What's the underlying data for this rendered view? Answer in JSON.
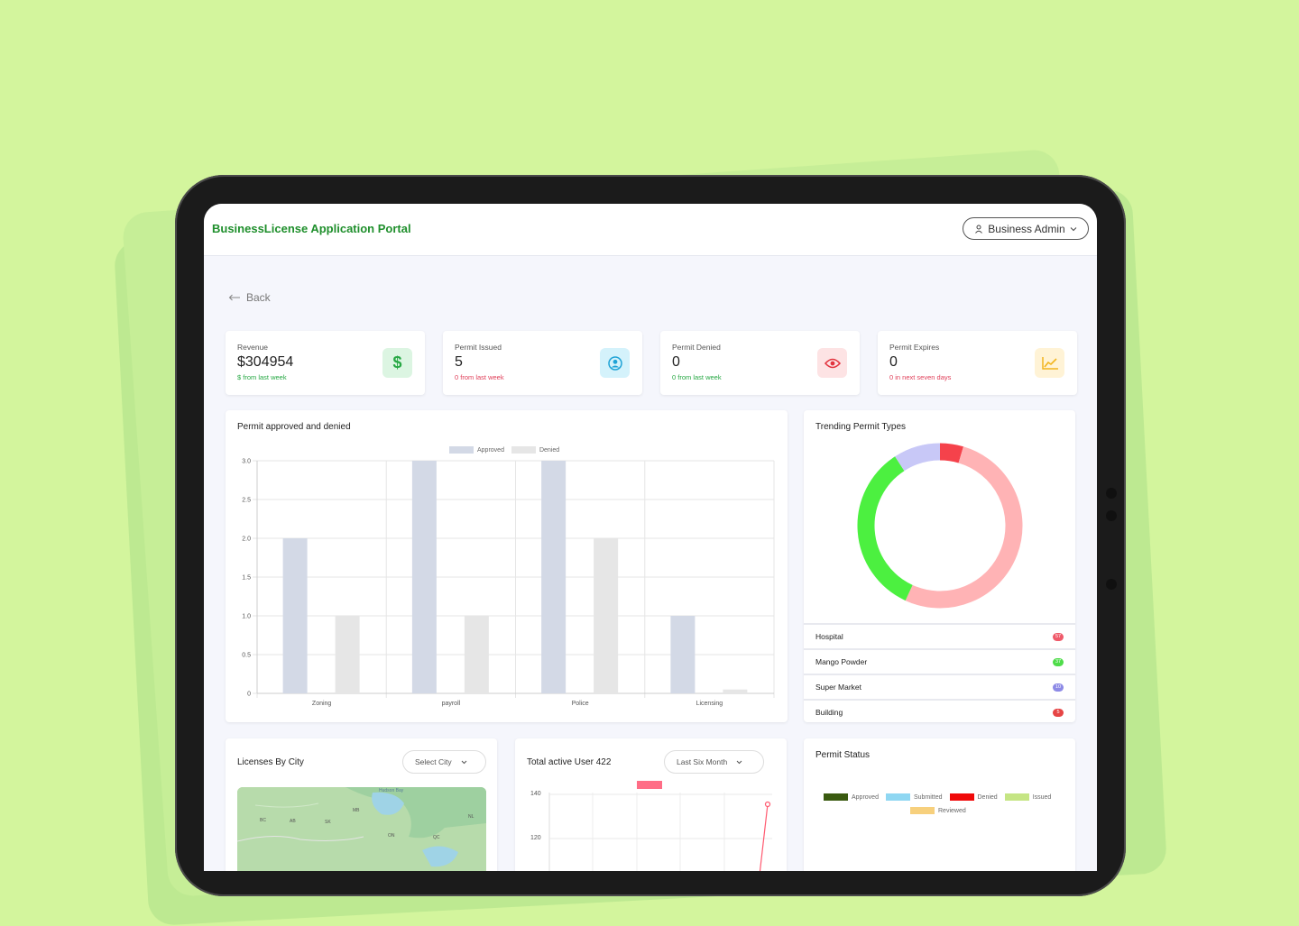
{
  "app": {
    "title": "BusinessLicense Application Portal",
    "user_label": "Business Admin"
  },
  "nav": {
    "back_label": "Back"
  },
  "stats": [
    {
      "label": "Revenue",
      "value": "$304954",
      "sub": "$ from last week",
      "sub_color": "#27a844",
      "icon": "dollar-icon",
      "icon_bg": "#dcf5e2",
      "icon_color": "#27a844"
    },
    {
      "label": "Permit Issued",
      "value": "5",
      "sub": "0 from last week",
      "sub_color": "#e0405a",
      "icon": "user-circle-icon",
      "icon_bg": "#d4f2fb",
      "icon_color": "#1fa3d6"
    },
    {
      "label": "Permit Denied",
      "value": "0",
      "sub": "0 from last week",
      "sub_color": "#27a844",
      "icon": "eye-icon",
      "icon_bg": "#fde3e4",
      "icon_color": "#e2343f"
    },
    {
      "label": "Permit Expires",
      "value": "0",
      "sub": "0 in next seven days",
      "sub_color": "#e0405a",
      "icon": "trend-chart-icon",
      "icon_bg": "#fff3d6",
      "icon_color": "#f2b51e"
    }
  ],
  "permit_chart": {
    "title": "Permit approved and denied",
    "chart_data": {
      "type": "bar",
      "categories": [
        "Zoning",
        "payroll",
        "Police",
        "Licensing"
      ],
      "series": [
        {
          "name": "Approved",
          "values": [
            2,
            3,
            3,
            1
          ],
          "color": "#d3d9e6"
        },
        {
          "name": "Denied",
          "values": [
            1,
            1,
            2,
            0.05
          ],
          "color": "#e6e6e6"
        }
      ],
      "ylim": [
        0,
        3
      ],
      "yticks": [
        "0",
        "0.5",
        "1.0",
        "1.5",
        "2.0",
        "2.5",
        "3.0"
      ],
      "grid": true,
      "legend": "top"
    }
  },
  "trending": {
    "title": "Trending Permit Types",
    "chart_data": {
      "type": "pie",
      "categories": [
        "Hospital",
        "Mango Powder",
        "Super Market",
        "Building"
      ],
      "values": [
        57,
        37,
        10,
        5
      ],
      "colors": [
        "#ffb3b5",
        "#4cf040",
        "#c8c8f7",
        "#f5424b"
      ]
    },
    "items": [
      {
        "label": "Hospital",
        "count": "57",
        "color": "#ef5a6a"
      },
      {
        "label": "Mango Powder",
        "count": "37",
        "color": "#4fdc4a"
      },
      {
        "label": "Super Market",
        "count": "10",
        "color": "#8d8ae6"
      },
      {
        "label": "Building",
        "count": "5",
        "color": "#e64545"
      }
    ]
  },
  "licenses_by_city": {
    "title": "Licenses By City",
    "select_value": "Select City",
    "map_labels": [
      "Hudson Bay",
      "BC",
      "AB",
      "SK",
      "MB",
      "ON",
      "QC",
      "NL"
    ]
  },
  "active_users": {
    "title": "Total active User 422",
    "select_value": "Last Six Month",
    "chart_data": {
      "type": "line",
      "yticks": [
        "140",
        "120"
      ]
    }
  },
  "permit_status": {
    "title": "Permit Status",
    "legend": [
      {
        "label": "Approved",
        "color": "#3a5a10"
      },
      {
        "label": "Submitted",
        "color": "#8fd7f2"
      },
      {
        "label": "Denied",
        "color": "#f00a0a"
      },
      {
        "label": "Issued",
        "color": "#c5e584"
      },
      {
        "label": "Reviewed",
        "color": "#f7d07d"
      }
    ]
  }
}
